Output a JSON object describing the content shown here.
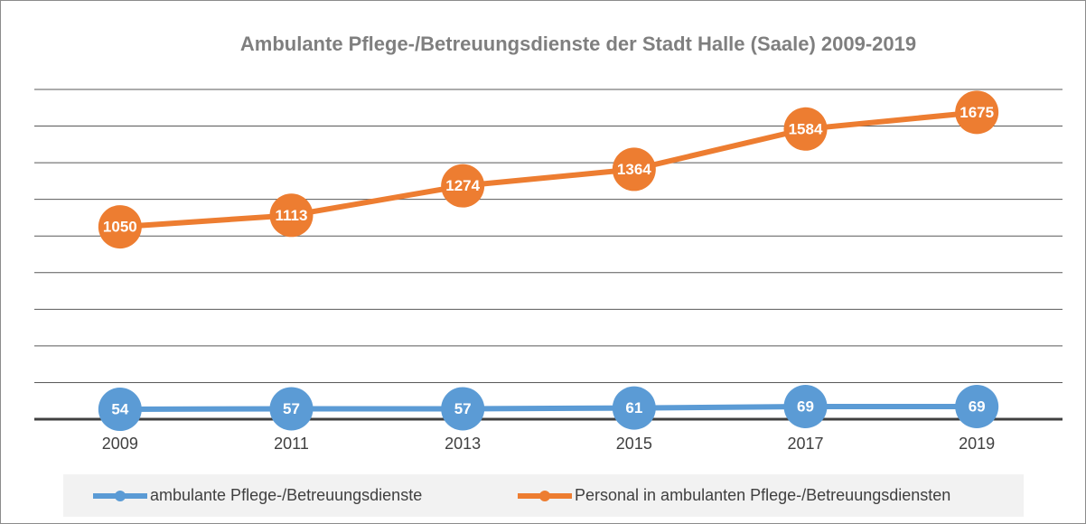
{
  "chart_data": {
    "type": "line",
    "title": "Ambulante Pflege-/Betreuungsdienste der Stadt Halle (Saale) 2009-2019",
    "categories": [
      "2009",
      "2011",
      "2013",
      "2015",
      "2017",
      "2019"
    ],
    "series": [
      {
        "name": "ambulante Pflege-/Betreuungsdienste",
        "color": "#5b9bd5",
        "values": [
          54,
          57,
          57,
          61,
          69,
          69
        ]
      },
      {
        "name": "Personal in ambulanten Pflege-/Betreuungsdiensten",
        "color": "#ed7d31",
        "values": [
          1050,
          1113,
          1274,
          1364,
          1584,
          1675
        ]
      }
    ],
    "ylim": [
      0,
      1800
    ],
    "yticks": [
      0,
      200,
      400,
      600,
      800,
      1000,
      1200,
      1400,
      1600,
      1800
    ],
    "grid": true,
    "legend": "bottom"
  }
}
